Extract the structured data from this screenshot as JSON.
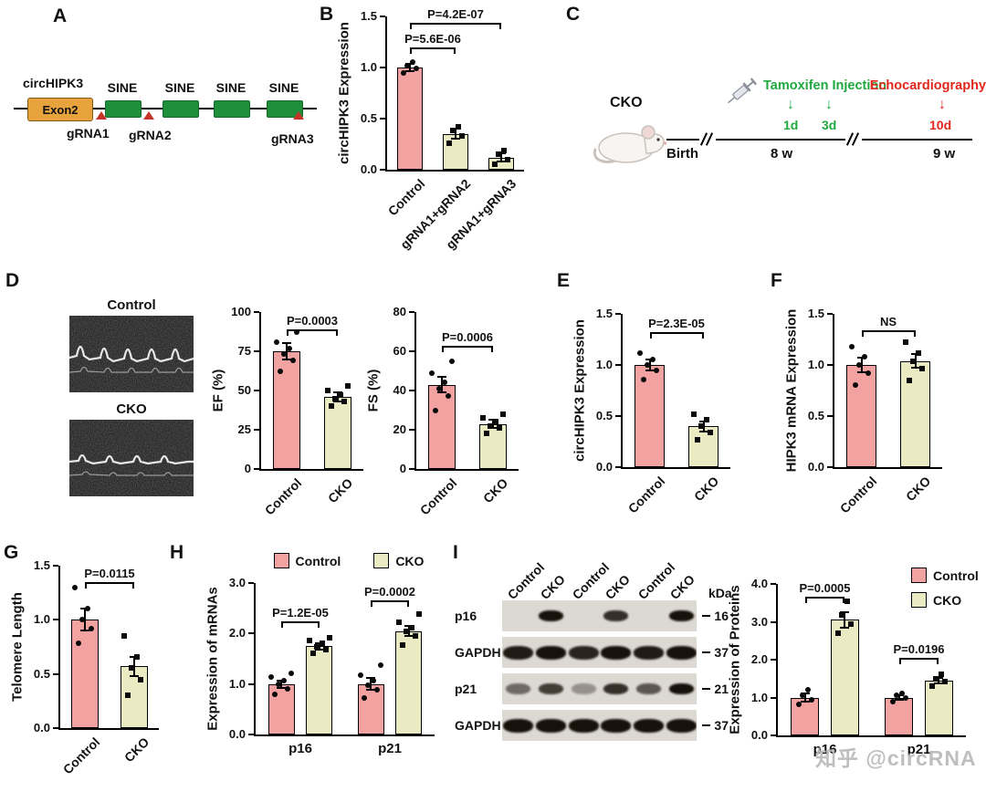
{
  "panel_letters": [
    "A",
    "B",
    "C",
    "D",
    "E",
    "F",
    "G",
    "H",
    "I"
  ],
  "palette": {
    "control": "#F3A2A2",
    "cko": "#EBEBC3",
    "green": "#1FA83E",
    "red": "#E3261D",
    "sine_green": "#1E8E3A",
    "exon_orange": "#E8A33D",
    "triangle_red": "#C43428",
    "band_dark": "#18110B"
  },
  "gene_map": {
    "gene": "circHIPK3",
    "exon": "Exon2",
    "sine": "SINE",
    "grna1": "gRNA1",
    "grna2": "gRNA2",
    "grna3": "gRNA3"
  },
  "timeline": {
    "cko_label": "CKO",
    "birth": "Birth",
    "week8": "8 w",
    "week9": "9 w",
    "tamoxifen": "Tamoxifen Injection",
    "echo": "Echocardiography",
    "d1": "1d",
    "d3": "3d",
    "d10": "10d",
    "down_arrow": "↓"
  },
  "echo": {
    "control_title": "Control",
    "cko_title": "CKO"
  },
  "blot": {
    "lane_labels": [
      "Control",
      "CKO",
      "Control",
      "CKO",
      "Control",
      "CKO"
    ],
    "kda_label": "kDa",
    "rows": [
      {
        "name": "p16",
        "kda": "16",
        "bands": [
          0,
          1,
          0,
          0.85,
          0,
          1
        ]
      },
      {
        "name": "GAPDH",
        "kda": "37",
        "bands": [
          0.95,
          1,
          0.9,
          1,
          0.95,
          1
        ]
      },
      {
        "name": "p21",
        "kda": "21",
        "bands": [
          0.55,
          0.78,
          0.35,
          0.85,
          0.65,
          1
        ]
      },
      {
        "name": "GAPDH",
        "kda": "37",
        "bands": [
          1,
          1,
          1,
          1,
          1,
          1
        ]
      }
    ]
  },
  "watermark": "知乎 @circRNA",
  "chart_data": [
    {
      "id": "B",
      "type": "bar",
      "ylabel": "circHIPK3 Expression",
      "ylim": [
        0,
        1.5
      ],
      "yticks": [
        "0.0",
        "0.5",
        "1.0",
        "1.5"
      ],
      "categories": [
        "Control",
        "gRNA1+gRNA2",
        "gRNA1+gRNA3"
      ],
      "values": [
        1.0,
        0.35,
        0.12
      ],
      "errors": [
        0.04,
        0.05,
        0.04
      ],
      "bar_colors": [
        "control",
        "cko",
        "cko"
      ],
      "point_shapes": [
        "circle",
        "square",
        "square"
      ],
      "points": [
        [
          0.95,
          0.99,
          1.02,
          1.05
        ],
        [
          0.26,
          0.33,
          0.38,
          0.42
        ],
        [
          0.05,
          0.1,
          0.15,
          0.19
        ]
      ],
      "sig": [
        {
          "from": 0,
          "to": 1,
          "y": 1.18,
          "label": "P=5.6E-06"
        },
        {
          "from": 0,
          "to": 2,
          "y": 1.42,
          "label": "P=4.2E-07"
        }
      ],
      "x_rotate": 45
    },
    {
      "id": "EF",
      "type": "bar",
      "ylabel": "EF (%)",
      "ylim": [
        0,
        100
      ],
      "yticks": [
        "0",
        "25",
        "50",
        "75",
        "100"
      ],
      "categories": [
        "Control",
        "CKO"
      ],
      "values": [
        75,
        46
      ],
      "errors": [
        5,
        3
      ],
      "bar_colors": [
        "control",
        "cko"
      ],
      "point_shapes": [
        "circle",
        "square"
      ],
      "points": [
        [
          62,
          69,
          73,
          77,
          81,
          87
        ],
        [
          40,
          43,
          45,
          47,
          50,
          53
        ]
      ],
      "sig": [
        {
          "from": 0,
          "to": 1,
          "y": 88,
          "label": "P=0.0003"
        }
      ],
      "x_rotate": 45
    },
    {
      "id": "FS",
      "type": "bar",
      "ylabel": "FS (%)",
      "ylim": [
        0,
        80
      ],
      "yticks": [
        "0",
        "20",
        "40",
        "60",
        "80"
      ],
      "categories": [
        "Control",
        "CKO"
      ],
      "values": [
        43,
        23
      ],
      "errors": [
        4,
        2
      ],
      "bar_colors": [
        "control",
        "cko"
      ],
      "point_shapes": [
        "circle",
        "square"
      ],
      "points": [
        [
          30,
          37,
          41,
          44,
          49,
          55
        ],
        [
          18,
          21,
          22,
          24,
          26,
          28
        ]
      ],
      "sig": [
        {
          "from": 0,
          "to": 1,
          "y": 62,
          "label": "P=0.0006"
        }
      ],
      "x_rotate": 45
    },
    {
      "id": "E",
      "type": "bar",
      "ylabel": "circHIPK3 Expression",
      "ylim": [
        0,
        1.5
      ],
      "yticks": [
        "0.0",
        "0.5",
        "1.0",
        "1.5"
      ],
      "categories": [
        "Control",
        "CKO"
      ],
      "values": [
        1.0,
        0.4
      ],
      "errors": [
        0.05,
        0.05
      ],
      "bar_colors": [
        "control",
        "cko"
      ],
      "point_shapes": [
        "circle",
        "square"
      ],
      "points": [
        [
          0.86,
          0.95,
          1.0,
          1.05,
          1.12
        ],
        [
          0.27,
          0.34,
          0.4,
          0.46,
          0.52
        ]
      ],
      "sig": [
        {
          "from": 0,
          "to": 1,
          "y": 1.3,
          "label": "P=2.3E-05"
        }
      ],
      "x_rotate": 45
    },
    {
      "id": "F",
      "type": "bar",
      "ylabel": "HIPK3 mRNA Expression",
      "ylim": [
        0,
        1.5
      ],
      "yticks": [
        "0.0",
        "0.5",
        "1.0",
        "1.5"
      ],
      "categories": [
        "Control",
        "CKO"
      ],
      "values": [
        1.0,
        1.04
      ],
      "errors": [
        0.07,
        0.07
      ],
      "bar_colors": [
        "control",
        "cko"
      ],
      "point_shapes": [
        "circle",
        "square"
      ],
      "points": [
        [
          0.8,
          0.92,
          1.0,
          1.08,
          1.18
        ],
        [
          0.85,
          0.96,
          1.04,
          1.12,
          1.22
        ]
      ],
      "sig": [
        {
          "from": 0,
          "to": 1,
          "y": 1.32,
          "label": "NS"
        }
      ],
      "x_rotate": 45
    },
    {
      "id": "G",
      "type": "bar",
      "ylabel": "Telomere Length",
      "ylim": [
        0,
        1.5
      ],
      "yticks": [
        "0.0",
        "0.5",
        "1.0",
        "1.5"
      ],
      "categories": [
        "Control",
        "CKO"
      ],
      "values": [
        1.0,
        0.57
      ],
      "errors": [
        0.1,
        0.09
      ],
      "bar_colors": [
        "control",
        "cko"
      ],
      "point_shapes": [
        "circle",
        "square"
      ],
      "points": [
        [
          0.78,
          0.92,
          1.0,
          1.1,
          1.3
        ],
        [
          0.3,
          0.45,
          0.56,
          0.66,
          0.85
        ]
      ],
      "sig": [
        {
          "from": 0,
          "to": 1,
          "y": 1.33,
          "label": "P=0.0115"
        }
      ],
      "x_rotate": 45
    },
    {
      "id": "H",
      "type": "grouped_bar",
      "ylabel": "Expression of mRNAs",
      "ylim": [
        0,
        3
      ],
      "yticks": [
        "0.0",
        "1.0",
        "2.0",
        "3.0"
      ],
      "categories": [
        "p16",
        "p21"
      ],
      "series": [
        {
          "name": "Control",
          "color": "control",
          "shape": "circle",
          "values": [
            1.0,
            1.0
          ],
          "errors": [
            0.07,
            0.12
          ],
          "points": [
            [
              0.8,
              0.9,
              1.0,
              1.06,
              1.14,
              1.22
            ],
            [
              0.72,
              0.88,
              0.98,
              1.06,
              1.18,
              1.38
            ]
          ]
        },
        {
          "name": "CKO",
          "color": "cko",
          "shape": "square",
          "values": [
            1.75,
            2.05
          ],
          "errors": [
            0.06,
            0.1
          ],
          "points": [
            [
              1.6,
              1.68,
              1.74,
              1.8,
              1.86,
              1.92
            ],
            [
              1.78,
              1.95,
              2.04,
              2.12,
              2.22,
              2.38
            ]
          ]
        }
      ],
      "sig": [
        {
          "group": 0,
          "y": 2.2,
          "label": "P=1.2E-05"
        },
        {
          "group": 1,
          "y": 2.62,
          "label": "P=0.0002"
        }
      ],
      "legend": {
        "position": "top",
        "items": [
          "Control",
          "CKO"
        ]
      },
      "x_rotate": 0
    },
    {
      "id": "IP",
      "type": "grouped_bar",
      "ylabel": "Expression of Proteins",
      "ylim": [
        0,
        4
      ],
      "yticks": [
        "0.0",
        "1.0",
        "2.0",
        "3.0",
        "4.0"
      ],
      "categories": [
        "p16",
        "p21"
      ],
      "series": [
        {
          "name": "Control",
          "color": "control",
          "shape": "circle",
          "values": [
            1.0,
            1.0
          ],
          "errors": [
            0.1,
            0.07
          ],
          "points": [
            [
              0.82,
              0.95,
              1.06,
              1.2
            ],
            [
              0.88,
              0.98,
              1.06,
              1.12
            ]
          ]
        },
        {
          "name": "CKO",
          "color": "cko",
          "shape": "square",
          "values": [
            3.05,
            1.45
          ],
          "errors": [
            0.2,
            0.08
          ],
          "points": [
            [
              2.7,
              2.95,
              3.18,
              3.55
            ],
            [
              1.3,
              1.42,
              1.5,
              1.62
            ]
          ]
        }
      ],
      "sig": [
        {
          "group": 0,
          "y": 3.62,
          "label": "P=0.0005"
        },
        {
          "group": 1,
          "y": 2.0,
          "label": "P=0.0196"
        }
      ],
      "legend": {
        "position": "right",
        "items": [
          "Control",
          "CKO"
        ]
      },
      "x_rotate": 0
    }
  ]
}
